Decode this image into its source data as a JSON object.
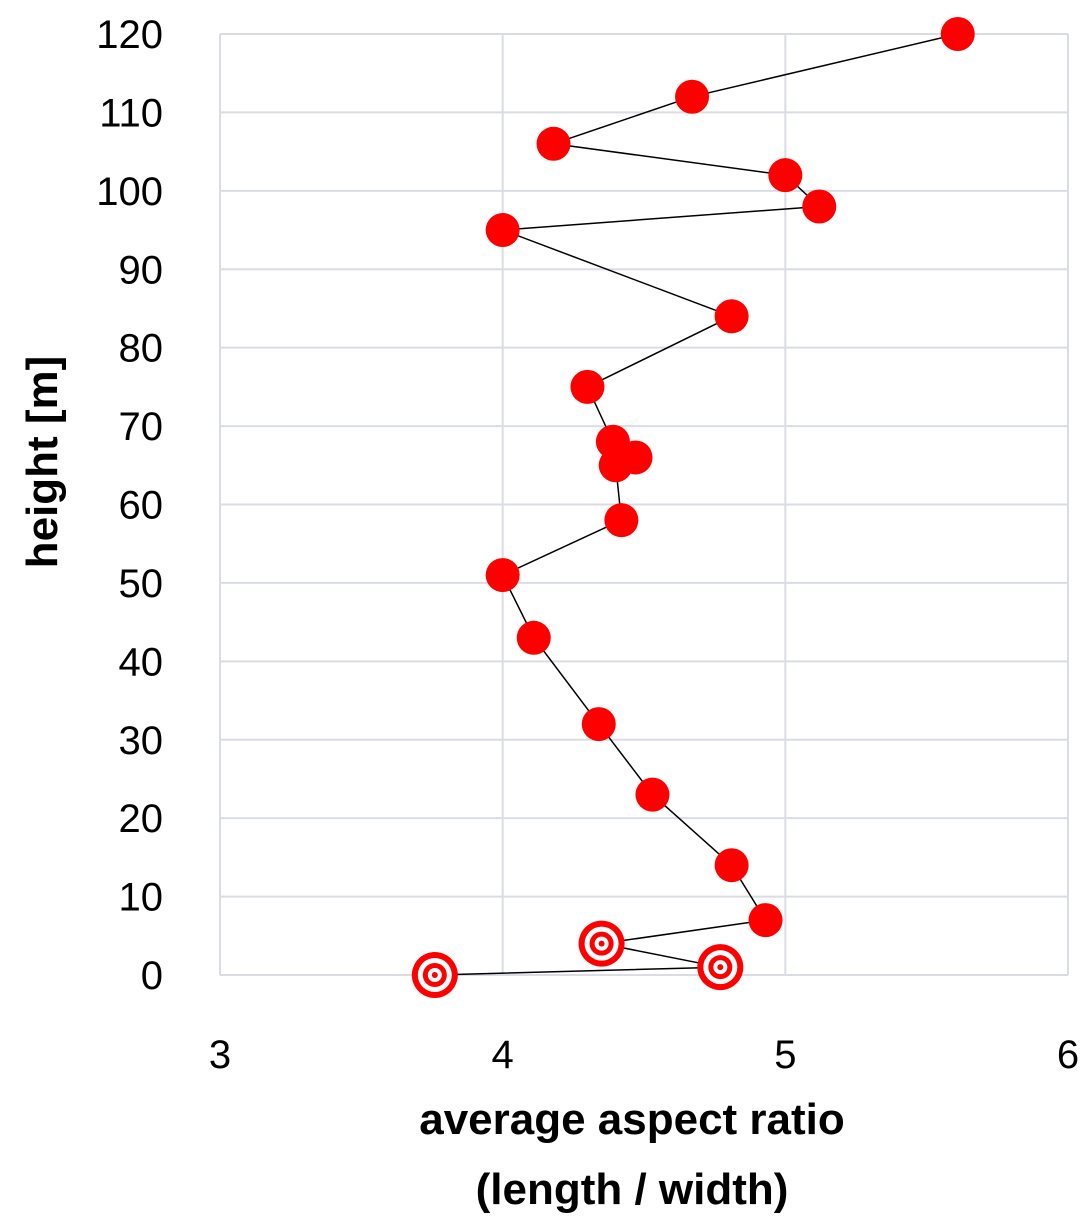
{
  "chart_data": {
    "type": "scatter",
    "title": "",
    "xlabel_lines": [
      "average aspect ratio",
      "(length / width)"
    ],
    "ylabel": "height [m]",
    "xlim": [
      3,
      6
    ],
    "ylim": [
      0,
      120
    ],
    "xticks": [
      3,
      4,
      5,
      6
    ],
    "yticks": [
      0,
      10,
      20,
      30,
      40,
      50,
      60,
      70,
      80,
      90,
      100,
      110,
      120
    ],
    "grid": true,
    "legend": "none",
    "connect_points": true,
    "colors": {
      "marker": "#ff0000",
      "line": "#000000",
      "grid": "#d9dde3"
    },
    "series": [
      {
        "points": [
          {
            "x": 3.76,
            "y": 0,
            "marker": "ring"
          },
          {
            "x": 4.77,
            "y": 1,
            "marker": "ring"
          },
          {
            "x": 4.35,
            "y": 4,
            "marker": "ring"
          },
          {
            "x": 4.93,
            "y": 7,
            "marker": "dot"
          },
          {
            "x": 4.81,
            "y": 14,
            "marker": "dot"
          },
          {
            "x": 4.53,
            "y": 23,
            "marker": "dot"
          },
          {
            "x": 4.34,
            "y": 32,
            "marker": "dot"
          },
          {
            "x": 4.11,
            "y": 43,
            "marker": "dot"
          },
          {
            "x": 4.0,
            "y": 51,
            "marker": "dot"
          },
          {
            "x": 4.42,
            "y": 58,
            "marker": "dot"
          },
          {
            "x": 4.4,
            "y": 65,
            "marker": "dot"
          },
          {
            "x": 4.47,
            "y": 66,
            "marker": "dot"
          },
          {
            "x": 4.39,
            "y": 68,
            "marker": "dot"
          },
          {
            "x": 4.3,
            "y": 75,
            "marker": "dot"
          },
          {
            "x": 4.81,
            "y": 84,
            "marker": "dot"
          },
          {
            "x": 4.0,
            "y": 95,
            "marker": "dot"
          },
          {
            "x": 5.12,
            "y": 98,
            "marker": "dot"
          },
          {
            "x": 5.0,
            "y": 102,
            "marker": "dot"
          },
          {
            "x": 4.18,
            "y": 106,
            "marker": "dot"
          },
          {
            "x": 4.67,
            "y": 112,
            "marker": "dot"
          },
          {
            "x": 5.61,
            "y": 120,
            "marker": "dot"
          }
        ]
      }
    ]
  }
}
